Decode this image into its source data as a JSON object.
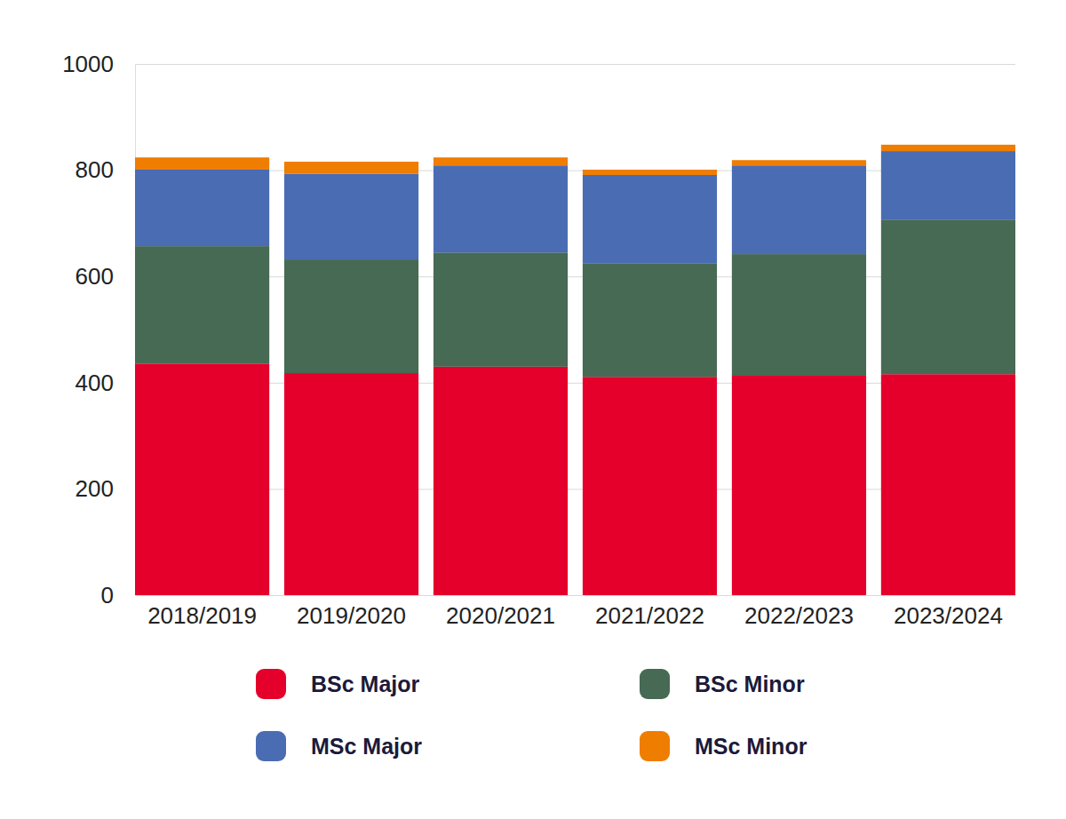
{
  "chart_data": {
    "type": "bar",
    "stacked": true,
    "grid": true,
    "legend": "bottom",
    "categories": [
      "2018/2019",
      "2019/2020",
      "2020/2021",
      "2021/2022",
      "2022/2023",
      "2023/2024"
    ],
    "series": [
      {
        "name": "BSc Major",
        "color": "#e4002b",
        "values": [
          436,
          418,
          430,
          411,
          413,
          416
        ]
      },
      {
        "name": "BSc Minor",
        "color": "#466a54",
        "values": [
          221,
          214,
          215,
          214,
          229,
          291
        ]
      },
      {
        "name": "MSc Major",
        "color": "#4a6cb3",
        "values": [
          144,
          161,
          164,
          166,
          167,
          129
        ]
      },
      {
        "name": "MSc Minor",
        "color": "#ef7d00",
        "values": [
          23,
          23,
          15,
          10,
          10,
          12
        ]
      }
    ],
    "ylim": [
      0,
      1000
    ],
    "yticks": [
      0,
      200,
      400,
      600,
      800,
      1000
    ]
  }
}
